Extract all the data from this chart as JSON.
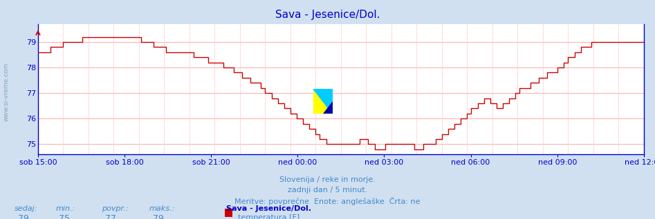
{
  "title": "Sava - Jesenice/Dol.",
  "bg_color": "#d0e0f0",
  "plot_bg_color": "#ffffff",
  "line_color": "#cc0000",
  "grid_color_h": "#ffaaaa",
  "grid_color_v": "#ffcccc",
  "axis_color": "#0000cc",
  "text_color": "#4488cc",
  "xlabels": [
    "sob 15:00",
    "sob 18:00",
    "sob 21:00",
    "ned 00:00",
    "ned 03:00",
    "ned 06:00",
    "ned 09:00",
    "ned 12:00"
  ],
  "yticks": [
    75,
    76,
    77,
    78,
    79
  ],
  "ymin": 74.6,
  "ymax": 79.7,
  "subtitle1": "Slovenija / reke in morje.",
  "subtitle2": "zadnji dan / 5 minut.",
  "subtitle3": "Meritve: povprečne  Enote: anglešaške  Črta: ne",
  "legend_title": "Sava - Jesenice/Dol.",
  "legend_label": "temperatura [F]",
  "legend_color": "#cc0000",
  "stats_labels": [
    "sedaj:",
    "min.:",
    "povpr.:",
    "maks.:"
  ],
  "stats_values": [
    "79",
    "75",
    "77",
    "79"
  ],
  "n_points": 289
}
